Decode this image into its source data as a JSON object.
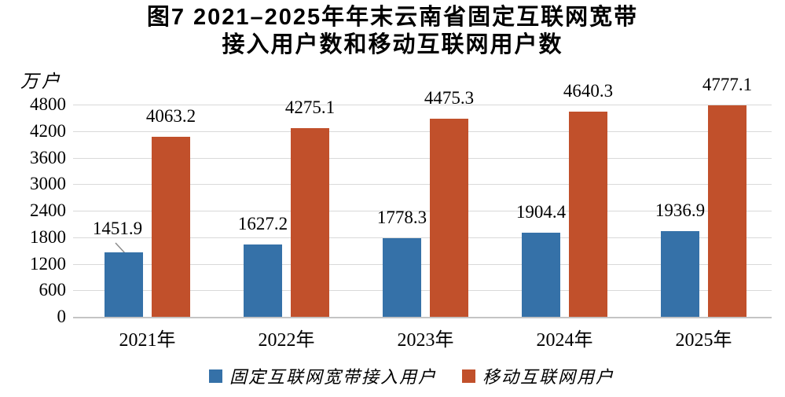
{
  "title": {
    "line1": "图7 2021–2025年年末云南省固定互联网宽带",
    "line2": "接入用户数和移动互联网用户数"
  },
  "y_axis": {
    "unit": "万户",
    "tick_values": [
      0,
      600,
      1200,
      1800,
      2400,
      3000,
      3600,
      4200,
      4800
    ]
  },
  "chart_data": {
    "type": "bar",
    "title": "图7 2021–2025年年末云南省固定互联网宽带接入用户数和移动互联网用户数",
    "unit": "万户",
    "categories": [
      "2021年",
      "2022年",
      "2023年",
      "2024年",
      "2025年"
    ],
    "series": [
      {
        "name": "固定互联网宽带接入用户",
        "color": "#3571A8",
        "values": [
          1451.9,
          1627.2,
          1778.3,
          1904.4,
          1936.9
        ]
      },
      {
        "name": "移动互联网用户",
        "color": "#C1502B",
        "values": [
          4063.2,
          4275.1,
          4475.3,
          4640.3,
          4777.1
        ]
      }
    ],
    "ylim": [
      0,
      4800
    ],
    "y_tick_step": 600,
    "grid": true,
    "data_labels": true,
    "legend_position": "bottom",
    "annotations": {
      "first_fixed_label_has_leader_line": true
    }
  },
  "legend": {
    "items": [
      {
        "label": "固定互联网宽带接入用户",
        "color": "#3571A8"
      },
      {
        "label": "移动互联网用户",
        "color": "#C1502B"
      }
    ]
  },
  "colors": {
    "fixed_broadband": "#3571A8",
    "mobile_internet": "#C1502B",
    "gridline": "#D9D9D9",
    "axis_line": "#C4C4C4",
    "leader_line": "#8C8C8C",
    "text": "#000000"
  }
}
